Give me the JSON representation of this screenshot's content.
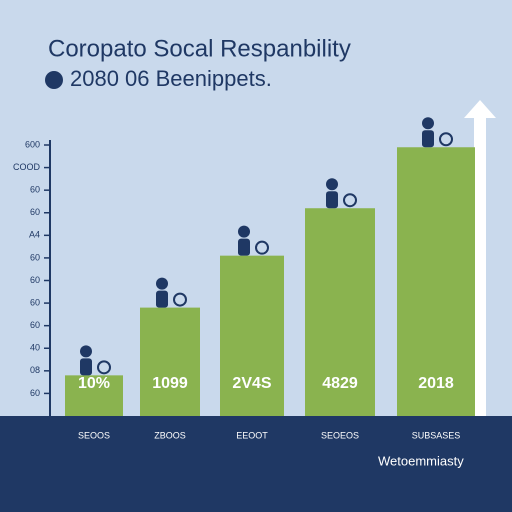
{
  "chart_data": {
    "type": "bar",
    "title": "Coropato Socal Respanbility",
    "subtitle": "2080 06 Beenippets.",
    "categories": [
      "SEOOS",
      "ZBOOS",
      "EEOOT",
      "SEOEOS",
      "SUBSASES"
    ],
    "bar_labels": [
      "10%",
      "1099",
      "2V4S",
      "4829",
      "2018"
    ],
    "values": [
      1.8,
      4.8,
      7.1,
      9.2,
      11.9
    ],
    "color": "#8ab34f",
    "ylim": [
      0,
      12
    ],
    "yticks": [
      {
        "value": 1,
        "label": "60"
      },
      {
        "value": 2,
        "label": "08"
      },
      {
        "value": 3,
        "label": "40"
      },
      {
        "value": 4,
        "label": "60"
      },
      {
        "value": 5,
        "label": "60"
      },
      {
        "value": 6,
        "label": "60"
      },
      {
        "value": 7,
        "label": "60"
      },
      {
        "value": 8,
        "label": "A4"
      },
      {
        "value": 9,
        "label": "60"
      },
      {
        "value": 10,
        "label": "60"
      },
      {
        "value": 11,
        "label": "COOD"
      },
      {
        "value": 12,
        "label": "600"
      }
    ],
    "footer": "Wetoemmiasty"
  }
}
